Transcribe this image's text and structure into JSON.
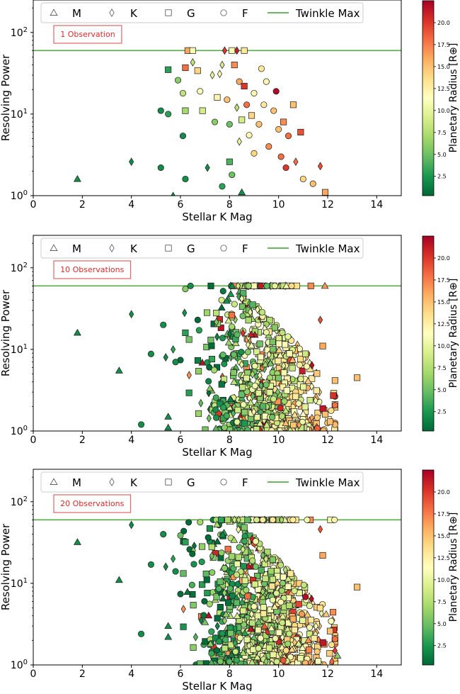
{
  "chart_data": [
    {
      "type": "scatter",
      "panel_id": "obs1",
      "annotation": "1 Observation",
      "xlabel": "Stellar K Mag",
      "ylabel": "Resolving Power",
      "xlim": [
        0,
        15
      ],
      "ylim_log": [
        1,
        250
      ],
      "x_ticks": [
        "0",
        "2",
        "4",
        "6",
        "8",
        "10",
        "12",
        "14"
      ],
      "y_ticks": [
        "10^0",
        "10^1",
        "10^2"
      ],
      "hline": {
        "value": 60,
        "label": "Twinkle Max",
        "color": "#5aab46"
      },
      "legend": [
        {
          "marker": "triangle",
          "label": "M"
        },
        {
          "marker": "diamond",
          "label": "K"
        },
        {
          "marker": "square",
          "label": "G"
        },
        {
          "marker": "circle",
          "label": "F"
        },
        {
          "marker": "line",
          "label": "Twinkle Max"
        }
      ],
      "colorbar": {
        "label": "Planetary Radius [R⊕]",
        "ticks": [
          "2.5",
          "5.0",
          "7.5",
          "10.0",
          "12.5",
          "15.0",
          "17.5",
          "20.0"
        ],
        "range": [
          0.3,
          22.5
        ]
      },
      "points": [
        {
          "x": 1.8,
          "y": 1.6,
          "m": "triangle",
          "r": 2
        },
        {
          "x": 4.0,
          "y": 2.6,
          "m": "diamond",
          "r": 2
        },
        {
          "x": 5.2,
          "y": 2.2,
          "m": "circle",
          "r": 2
        },
        {
          "x": 5.2,
          "y": 11,
          "m": "circle",
          "r": 2
        },
        {
          "x": 5.5,
          "y": 10,
          "m": "circle",
          "r": 3
        },
        {
          "x": 5.5,
          "y": 35,
          "m": "square",
          "r": 3
        },
        {
          "x": 5.7,
          "y": 1.0,
          "m": "triangle",
          "r": 2
        },
        {
          "x": 5.9,
          "y": 26,
          "m": "circle",
          "r": 6
        },
        {
          "x": 6.1,
          "y": 5.4,
          "m": "circle",
          "r": 2
        },
        {
          "x": 6.1,
          "y": 18,
          "m": "circle",
          "r": 8
        },
        {
          "x": 6.2,
          "y": 1.6,
          "m": "circle",
          "r": 2
        },
        {
          "x": 6.2,
          "y": 11,
          "m": "square",
          "r": 7
        },
        {
          "x": 6.2,
          "y": 37,
          "m": "square",
          "r": 18
        },
        {
          "x": 6.3,
          "y": 60,
          "m": "square",
          "r": 16
        },
        {
          "x": 6.5,
          "y": 43,
          "m": "diamond",
          "r": 8
        },
        {
          "x": 6.5,
          "y": 60,
          "m": "square",
          "r": 11
        },
        {
          "x": 6.7,
          "y": 34,
          "m": "square",
          "r": 14
        },
        {
          "x": 6.8,
          "y": 19,
          "m": "circle",
          "r": 11
        },
        {
          "x": 6.9,
          "y": 11,
          "m": "square",
          "r": 9
        },
        {
          "x": 7.1,
          "y": 2.2,
          "m": "diamond",
          "r": 2
        },
        {
          "x": 7.3,
          "y": 30,
          "m": "diamond",
          "r": 10
        },
        {
          "x": 7.4,
          "y": 8.0,
          "m": "circle",
          "r": 6
        },
        {
          "x": 7.5,
          "y": 16,
          "m": "square",
          "r": 12
        },
        {
          "x": 7.6,
          "y": 31,
          "m": "diamond",
          "r": 12
        },
        {
          "x": 7.7,
          "y": 40,
          "m": "diamond",
          "r": 9
        },
        {
          "x": 7.7,
          "y": 1.3,
          "m": "circle",
          "r": 3
        },
        {
          "x": 7.8,
          "y": 60,
          "m": "diamond",
          "r": 20
        },
        {
          "x": 7.9,
          "y": 15,
          "m": "circle",
          "r": 15
        },
        {
          "x": 8.0,
          "y": 7.5,
          "m": "circle",
          "r": 5
        },
        {
          "x": 8.0,
          "y": 2.6,
          "m": "square",
          "r": 4
        },
        {
          "x": 8.1,
          "y": 1.8,
          "m": "circle",
          "r": 5
        },
        {
          "x": 8.1,
          "y": 60,
          "m": "square",
          "r": 11
        },
        {
          "x": 8.2,
          "y": 40,
          "m": "square",
          "r": 17
        },
        {
          "x": 8.3,
          "y": 12,
          "m": "diamond",
          "r": 8
        },
        {
          "x": 8.3,
          "y": 60,
          "m": "diamond",
          "r": 21
        },
        {
          "x": 8.4,
          "y": 25,
          "m": "circle",
          "r": 16
        },
        {
          "x": 8.4,
          "y": 4.6,
          "m": "diamond",
          "r": 10
        },
        {
          "x": 8.5,
          "y": 8.5,
          "m": "square",
          "r": 9
        },
        {
          "x": 8.5,
          "y": 1.1,
          "m": "triangle",
          "r": 2
        },
        {
          "x": 8.6,
          "y": 60,
          "m": "square",
          "r": 13
        },
        {
          "x": 8.6,
          "y": 22,
          "m": "square",
          "r": 20
        },
        {
          "x": 8.7,
          "y": 13,
          "m": "circle",
          "r": 18
        },
        {
          "x": 8.8,
          "y": 5.5,
          "m": "circle",
          "r": 12
        },
        {
          "x": 8.9,
          "y": 9.6,
          "m": "square",
          "r": 14
        },
        {
          "x": 9.0,
          "y": 18,
          "m": "circle",
          "r": 12
        },
        {
          "x": 9.0,
          "y": 3.3,
          "m": "circle",
          "r": 14
        },
        {
          "x": 9.2,
          "y": 7.5,
          "m": "circle",
          "r": 15
        },
        {
          "x": 9.3,
          "y": 36,
          "m": "circle",
          "r": 13
        },
        {
          "x": 9.4,
          "y": 13,
          "m": "circle",
          "r": 13
        },
        {
          "x": 9.5,
          "y": 25,
          "m": "circle",
          "r": 12
        },
        {
          "x": 9.6,
          "y": 4.0,
          "m": "circle",
          "r": 17
        },
        {
          "x": 9.8,
          "y": 11,
          "m": "circle",
          "r": 15
        },
        {
          "x": 9.9,
          "y": 19,
          "m": "circle",
          "r": 22
        },
        {
          "x": 10.0,
          "y": 6.5,
          "m": "circle",
          "r": 15
        },
        {
          "x": 10.1,
          "y": 3.0,
          "m": "circle",
          "r": 18
        },
        {
          "x": 10.2,
          "y": 8.0,
          "m": "square",
          "r": 17
        },
        {
          "x": 10.3,
          "y": 2.2,
          "m": "circle",
          "r": 20
        },
        {
          "x": 10.4,
          "y": 5.4,
          "m": "circle",
          "r": 18
        },
        {
          "x": 10.6,
          "y": 13,
          "m": "square",
          "r": 15
        },
        {
          "x": 10.7,
          "y": 2.6,
          "m": "diamond",
          "r": 18
        },
        {
          "x": 10.9,
          "y": 6.0,
          "m": "square",
          "r": 19
        },
        {
          "x": 11.0,
          "y": 1.6,
          "m": "circle",
          "r": 14
        },
        {
          "x": 11.4,
          "y": 1.4,
          "m": "circle",
          "r": 15
        },
        {
          "x": 11.7,
          "y": 2.3,
          "m": "diamond",
          "r": 19
        },
        {
          "x": 11.9,
          "y": 1.1,
          "m": "square",
          "r": 16
        }
      ]
    },
    {
      "type": "scatter",
      "panel_id": "obs10",
      "annotation": "10 Observations",
      "xlabel": "Stellar K Mag",
      "ylabel": "Resolving Power",
      "xlim": [
        0,
        15
      ],
      "ylim_log": [
        1,
        250
      ],
      "x_ticks": [
        "0",
        "2",
        "4",
        "6",
        "8",
        "10",
        "12",
        "14"
      ],
      "y_ticks": [
        "10^0",
        "10^1",
        "10^2"
      ],
      "hline": {
        "value": 60,
        "label": "Twinkle Max",
        "color": "#5aab46"
      },
      "legend": [
        {
          "marker": "triangle",
          "label": "M"
        },
        {
          "marker": "diamond",
          "label": "K"
        },
        {
          "marker": "square",
          "label": "G"
        },
        {
          "marker": "circle",
          "label": "F"
        },
        {
          "marker": "line",
          "label": "Twinkle Max"
        }
      ],
      "colorbar": {
        "label": "Planetary Radius [R⊕]",
        "ticks": [
          "2.5",
          "5.0",
          "7.5",
          "10.0",
          "12.5",
          "15.0",
          "17.5",
          "20.0"
        ],
        "range": [
          0.3,
          22.5
        ]
      },
      "points": [
        {
          "x": 1.8,
          "y": 16,
          "m": "triangle",
          "r": 2
        },
        {
          "x": 3.5,
          "y": 5.5,
          "m": "triangle",
          "r": 2
        },
        {
          "x": 4.0,
          "y": 27,
          "m": "diamond",
          "r": 2
        },
        {
          "x": 4.4,
          "y": 1.2,
          "m": "circle",
          "r": 2
        },
        {
          "x": 4.8,
          "y": 8.8,
          "m": "circle",
          "r": 2
        },
        {
          "x": 5.3,
          "y": 20,
          "m": "circle",
          "r": 2
        },
        {
          "x": 5.4,
          "y": 8.0,
          "m": "diamond",
          "r": 2
        },
        {
          "x": 5.5,
          "y": 1.5,
          "m": "triangle",
          "r": 2
        },
        {
          "x": 5.5,
          "y": 1.1,
          "m": "triangle",
          "r": 2
        },
        {
          "x": 5.7,
          "y": 10,
          "m": "diamond",
          "r": 3
        },
        {
          "x": 5.8,
          "y": 7.0,
          "m": "circle",
          "r": 2
        },
        {
          "x": 6.2,
          "y": 16,
          "m": "square",
          "r": 3
        },
        {
          "x": 6.2,
          "y": 55,
          "m": "circle",
          "r": 6
        },
        {
          "x": 13.2,
          "y": 4.5,
          "m": "square",
          "r": 15
        },
        {
          "x": 11.8,
          "y": 11,
          "m": "square",
          "r": 16
        },
        {
          "x": 11.7,
          "y": 23,
          "m": "diamond",
          "r": 19
        },
        {
          "x": 11.9,
          "y": 1.6,
          "m": "square",
          "r": 15
        },
        {
          "x": 12.1,
          "y": 1.3,
          "m": "square",
          "r": 15
        }
      ],
      "cloud": {
        "count": 820,
        "seed": 10,
        "x_mean": 9.4,
        "x_sd": 1.15,
        "x_min": 6.0,
        "x_max": 12.3,
        "logy_min": 0.0,
        "logy_max": 1.78
      }
    },
    {
      "type": "scatter",
      "panel_id": "obs20",
      "annotation": "20 Observations",
      "xlabel": "Stellar K Mag",
      "ylabel": "Resolving Power",
      "xlim": [
        0,
        15
      ],
      "ylim_log": [
        1,
        250
      ],
      "x_ticks": [
        "0",
        "2",
        "4",
        "6",
        "8",
        "10",
        "12",
        "14"
      ],
      "y_ticks": [
        "10^0",
        "10^1",
        "10^2"
      ],
      "hline": {
        "value": 60,
        "label": "Twinkle Max",
        "color": "#5aab46"
      },
      "legend": [
        {
          "marker": "triangle",
          "label": "M"
        },
        {
          "marker": "diamond",
          "label": "K"
        },
        {
          "marker": "square",
          "label": "G"
        },
        {
          "marker": "circle",
          "label": "F"
        },
        {
          "marker": "line",
          "label": "Twinkle Max"
        }
      ],
      "colorbar": {
        "label": "Planetary Radius [R⊕]",
        "ticks": [
          "2.5",
          "5.0",
          "7.5",
          "10.0",
          "12.5",
          "15.0",
          "17.5",
          "20.0"
        ],
        "range": [
          0.3,
          22.5
        ]
      },
      "points": [
        {
          "x": 1.8,
          "y": 32,
          "m": "triangle",
          "r": 2
        },
        {
          "x": 3.5,
          "y": 11,
          "m": "triangle",
          "r": 2
        },
        {
          "x": 4.0,
          "y": 52,
          "m": "diamond",
          "r": 2
        },
        {
          "x": 4.4,
          "y": 2.4,
          "m": "circle",
          "r": 2
        },
        {
          "x": 4.8,
          "y": 17,
          "m": "circle",
          "r": 2
        },
        {
          "x": 5.3,
          "y": 40,
          "m": "circle",
          "r": 2
        },
        {
          "x": 5.4,
          "y": 16,
          "m": "diamond",
          "r": 2
        },
        {
          "x": 5.5,
          "y": 3.0,
          "m": "triangle",
          "r": 2
        },
        {
          "x": 5.5,
          "y": 2.2,
          "m": "triangle",
          "r": 2
        },
        {
          "x": 5.7,
          "y": 20,
          "m": "diamond",
          "r": 3
        },
        {
          "x": 5.8,
          "y": 14,
          "m": "circle",
          "r": 2
        },
        {
          "x": 6.2,
          "y": 32,
          "m": "square",
          "r": 3
        },
        {
          "x": 13.2,
          "y": 9.0,
          "m": "square",
          "r": 15
        },
        {
          "x": 11.8,
          "y": 22,
          "m": "square",
          "r": 16
        },
        {
          "x": 11.7,
          "y": 46,
          "m": "diamond",
          "r": 19
        },
        {
          "x": 12.4,
          "y": 1.3,
          "m": "triangle",
          "r": 6
        },
        {
          "x": 12.1,
          "y": 2.6,
          "m": "square",
          "r": 15
        }
      ],
      "cloud": {
        "count": 1050,
        "seed": 20,
        "x_mean": 9.3,
        "x_sd": 1.2,
        "x_min": 6.0,
        "x_max": 12.3,
        "logy_min": 0.0,
        "logy_max": 1.78
      }
    }
  ]
}
